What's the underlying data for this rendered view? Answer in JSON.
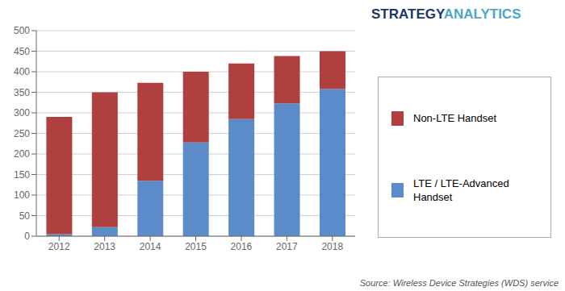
{
  "chart_data": {
    "type": "bar",
    "stacked": true,
    "categories": [
      "2012",
      "2013",
      "2014",
      "2015",
      "2016",
      "2017",
      "2018"
    ],
    "series": [
      {
        "name": "LTE / LTE-Advanced\nHandset",
        "color": "#5b8bc9",
        "values": [
          5,
          22,
          135,
          228,
          285,
          323,
          358
        ]
      },
      {
        "name": "Non-LTE Handset",
        "color": "#b04040",
        "values": [
          285,
          328,
          238,
          172,
          135,
          115,
          92
        ]
      }
    ],
    "ylim": [
      0,
      500
    ],
    "yticks": [
      0,
      50,
      100,
      150,
      200,
      250,
      300,
      350,
      400,
      450,
      500
    ],
    "grid": true,
    "legend": "right",
    "annotations": [
      {
        "text": "STRATEGY",
        "color": "#1c3668"
      },
      {
        "text": "ANALYTICS",
        "color": "#4da6c8"
      },
      {
        "text": "Source: Wireless Device Strategies (WDS) service"
      }
    ]
  }
}
